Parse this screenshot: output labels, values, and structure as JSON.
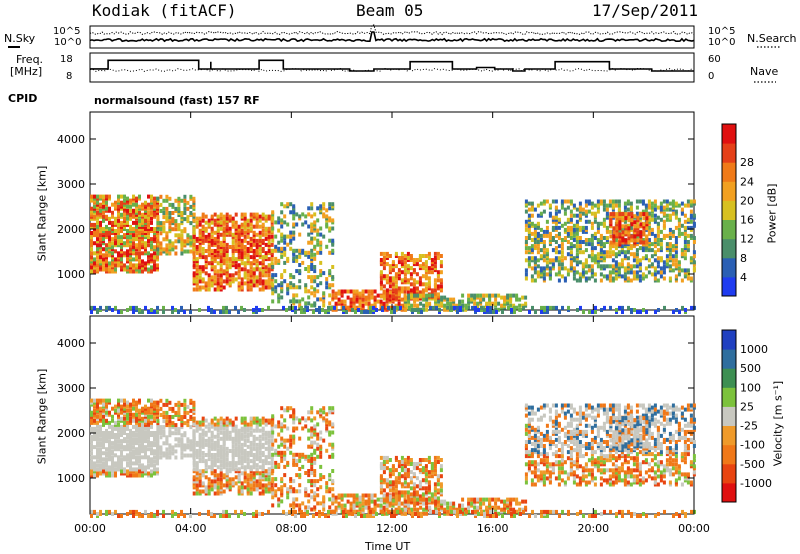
{
  "header": {
    "site": "Kodiak (fitACF)",
    "beam": "Beam 05",
    "date": "17/Sep/2011"
  },
  "top_panels": {
    "noise_left_label": "N.Sky",
    "noise_right_label": "N.Search",
    "noise_ticks": [
      "10^5",
      "10^0"
    ],
    "freq_left_label_1": "Freq.",
    "freq_left_label_2": "[MHz]",
    "freq_left_ticks": [
      "18",
      "8"
    ],
    "nave_label": "Nave",
    "nave_ticks": [
      "60",
      "0"
    ],
    "cpid_label": "CPID",
    "cpid_text": "normalsound (fast) 157 RF"
  },
  "chart_data": [
    {
      "type": "heatmap",
      "name": "power",
      "xlabel": "",
      "ylabel": "Slant Range [km]",
      "xlim": [
        "00:00",
        "00:00"
      ],
      "ylim": [
        200,
        4600
      ],
      "yticks": [
        "1000",
        "2000",
        "3000",
        "4000"
      ],
      "colorbar": {
        "label": "Power [dB]",
        "ticks": [
          "4",
          "8",
          "12",
          "16",
          "20",
          "24",
          "28"
        ],
        "colors": [
          "#1f3cf0",
          "#2a5fb4",
          "#4a8e6a",
          "#69b04a",
          "#d7c020",
          "#f2a020",
          "#f07a18",
          "#e54018",
          "#e01010"
        ]
      }
    },
    {
      "type": "heatmap",
      "name": "velocity",
      "xlabel": "Time UT",
      "ylabel": "Slant Range [km]",
      "xlim": [
        "00:00",
        "00:00"
      ],
      "ylim": [
        200,
        4600
      ],
      "yticks": [
        "1000",
        "2000",
        "3000",
        "4000"
      ],
      "xticks": [
        "00:00",
        "04:00",
        "08:00",
        "12:00",
        "16:00",
        "20:00",
        "00:00"
      ],
      "colorbar": {
        "label": "Velocity [m s⁻¹]",
        "ticks": [
          "1000",
          "500",
          "100",
          "25",
          "-25",
          "-100",
          "-500",
          "-1000"
        ],
        "colors": [
          "#2040c0",
          "#2f6e9e",
          "#3d8f52",
          "#7cc23c",
          "#c8c8c0",
          "#ef9a2a",
          "#f07818",
          "#e84410",
          "#e01010"
        ]
      }
    }
  ]
}
